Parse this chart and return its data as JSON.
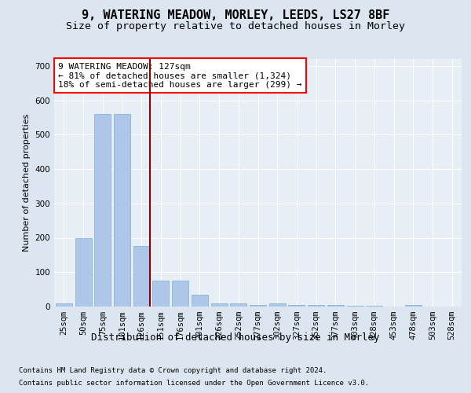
{
  "title1": "9, WATERING MEADOW, MORLEY, LEEDS, LS27 8BF",
  "title2": "Size of property relative to detached houses in Morley",
  "xlabel": "Distribution of detached houses by size in Morley",
  "ylabel": "Number of detached properties",
  "categories": [
    "25sqm",
    "50sqm",
    "75sqm",
    "101sqm",
    "126sqm",
    "151sqm",
    "176sqm",
    "201sqm",
    "226sqm",
    "252sqm",
    "277sqm",
    "302sqm",
    "327sqm",
    "352sqm",
    "377sqm",
    "403sqm",
    "428sqm",
    "453sqm",
    "478sqm",
    "503sqm",
    "528sqm"
  ],
  "values": [
    10,
    200,
    560,
    560,
    175,
    75,
    75,
    35,
    10,
    10,
    5,
    10,
    5,
    5,
    5,
    3,
    3,
    0,
    5,
    0,
    0
  ],
  "bar_color": "#aec6e8",
  "bar_edge_color": "#7aadd4",
  "red_line_x": 4,
  "annotation_text": "9 WATERING MEADOW: 127sqm\n← 81% of detached houses are smaller (1,324)\n18% of semi-detached houses are larger (299) →",
  "annotation_box_color": "white",
  "annotation_box_edge_color": "red",
  "ylim": [
    0,
    720
  ],
  "yticks": [
    0,
    100,
    200,
    300,
    400,
    500,
    600,
    700
  ],
  "bg_color": "#dce6f0",
  "plot_bg_color": "#e8eef6",
  "grid_color": "white",
  "footer1": "Contains HM Land Registry data © Crown copyright and database right 2024.",
  "footer2": "Contains public sector information licensed under the Open Government Licence v3.0.",
  "title1_fontsize": 11,
  "title2_fontsize": 9.5,
  "xlabel_fontsize": 9,
  "ylabel_fontsize": 8,
  "tick_fontsize": 7.5,
  "annotation_fontsize": 8,
  "footer_fontsize": 6.5
}
